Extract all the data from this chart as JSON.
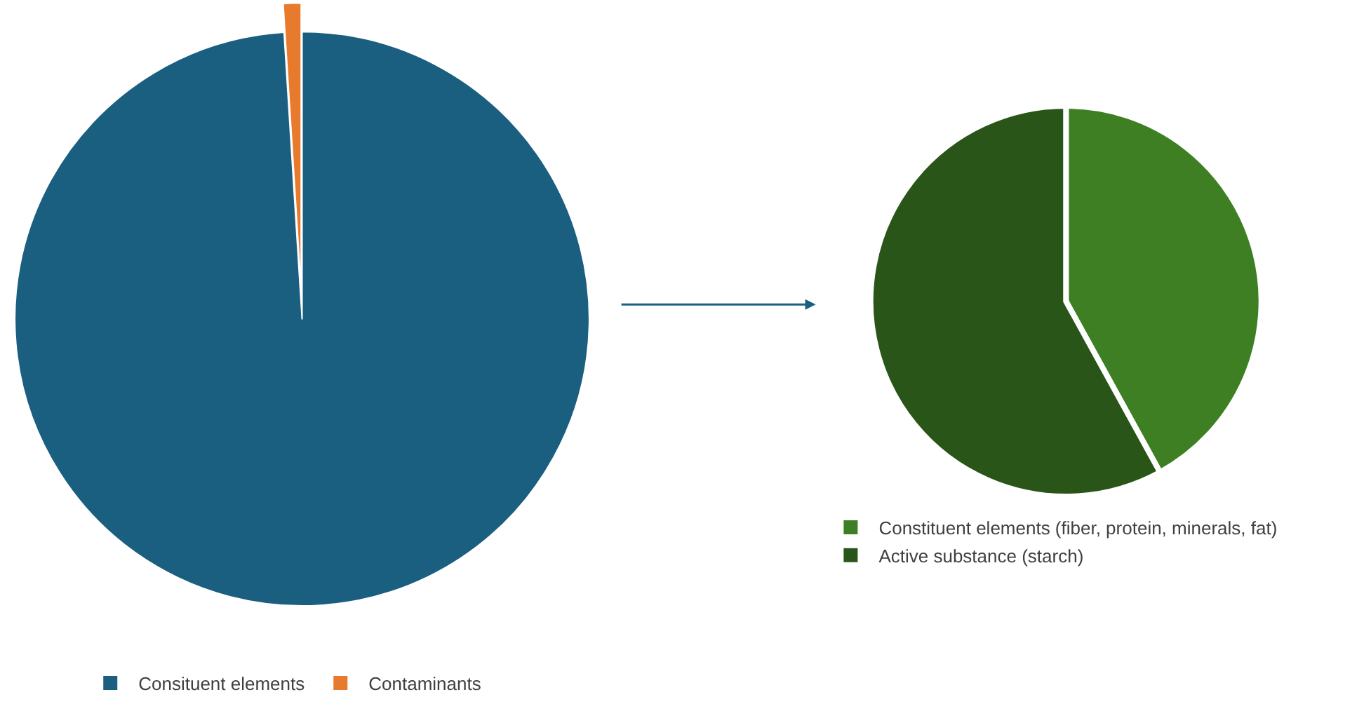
{
  "chart_data": [
    {
      "type": "pie",
      "categories": [
        "Consituent elements",
        "Contaminants"
      ],
      "values": [
        99,
        1
      ],
      "colors": [
        "#1a5e80",
        "#e87a2e"
      ],
      "legend": "bottom"
    },
    {
      "type": "pie",
      "categories": [
        "Constituent elements (fiber, protein, minerals, fat)",
        "Active substance (starch)"
      ],
      "values": [
        42,
        58
      ],
      "colors": [
        "#3f7f24",
        "#2a5518"
      ],
      "legend": "bottom"
    }
  ]
}
